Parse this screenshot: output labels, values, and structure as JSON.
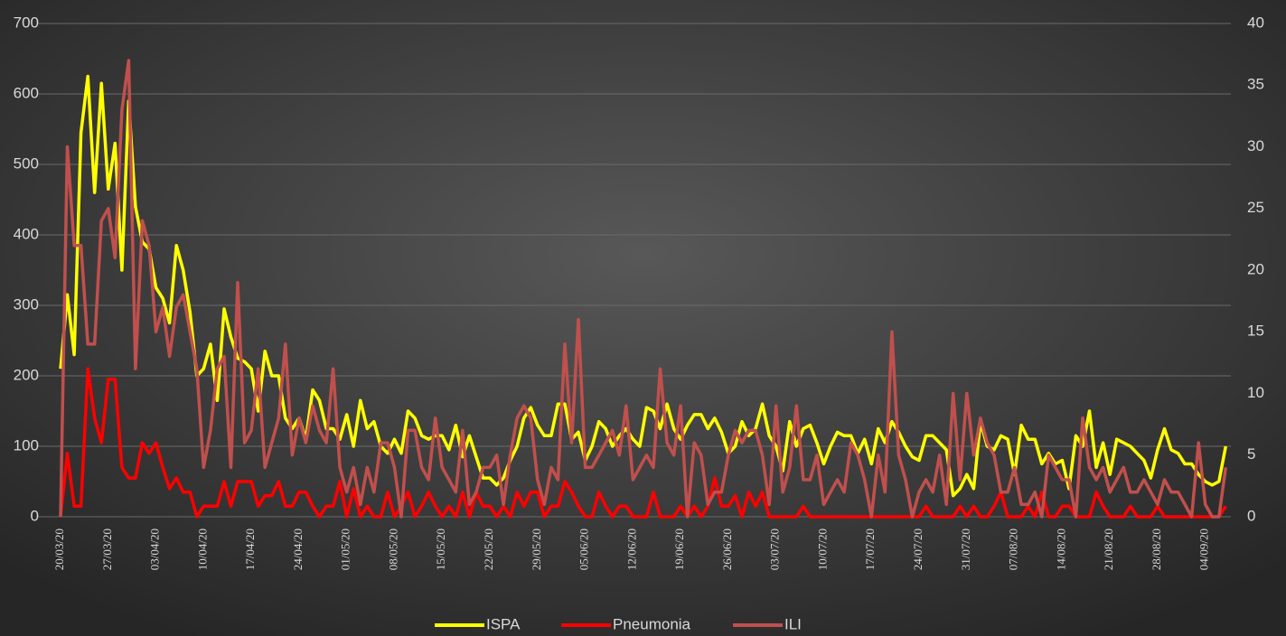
{
  "chart_data": {
    "type": "line",
    "categories": [
      "20/03/20",
      null,
      null,
      null,
      null,
      null,
      null,
      "27/03/20",
      null,
      null,
      null,
      null,
      null,
      null,
      "03/04/20",
      null,
      null,
      null,
      null,
      null,
      null,
      "10/04/20",
      null,
      null,
      null,
      null,
      null,
      null,
      "17/04/20",
      null,
      null,
      null,
      null,
      null,
      null,
      "24/04/20",
      null,
      null,
      null,
      null,
      null,
      null,
      "01/05/20",
      null,
      null,
      null,
      null,
      null,
      null,
      "08/05/20",
      null,
      null,
      null,
      null,
      null,
      null,
      "15/05/20",
      null,
      null,
      null,
      null,
      null,
      null,
      "22/05/20",
      null,
      null,
      null,
      null,
      null,
      null,
      "29/05/20",
      null,
      null,
      null,
      null,
      null,
      null,
      "05/06/20",
      null,
      null,
      null,
      null,
      null,
      null,
      "12/06/20",
      null,
      null,
      null,
      null,
      null,
      null,
      "19/06/20",
      null,
      null,
      null,
      null,
      null,
      null,
      "26/06/20",
      null,
      null,
      null,
      null,
      null,
      null,
      "03/07/20",
      null,
      null,
      null,
      null,
      null,
      null,
      "10/07/20",
      null,
      null,
      null,
      null,
      null,
      null,
      "17/07/20",
      null,
      null,
      null,
      null,
      null,
      null,
      "24/07/20",
      null,
      null,
      null,
      null,
      null,
      null,
      "31/07/20",
      null,
      null,
      null,
      null,
      null,
      null,
      "07/08/20",
      null,
      null,
      null,
      null,
      null,
      null,
      "14/08/20",
      null,
      null,
      null,
      null,
      null,
      null,
      "21/08/20",
      null,
      null,
      null,
      null,
      null,
      null,
      "28/08/20",
      null,
      null,
      null,
      null,
      null,
      null,
      "04/09/20",
      null,
      null,
      null
    ],
    "series": [
      {
        "name": "ISPA",
        "color": "#ffff00",
        "values": [
          210,
          315,
          230,
          545,
          625,
          460,
          615,
          465,
          530,
          350,
          590,
          440,
          390,
          380,
          325,
          310,
          275,
          385,
          350,
          290,
          200,
          210,
          245,
          165,
          295,
          255,
          225,
          220,
          210,
          150,
          235,
          200,
          200,
          140,
          125,
          140,
          110,
          180,
          165,
          125,
          125,
          110,
          145,
          100,
          165,
          125,
          135,
          100,
          90,
          110,
          90,
          150,
          140,
          115,
          110,
          115,
          115,
          95,
          130,
          85,
          115,
          85,
          55,
          55,
          45,
          55,
          80,
          100,
          140,
          155,
          130,
          115,
          115,
          160,
          160,
          110,
          120,
          80,
          100,
          135,
          125,
          100,
          115,
          125,
          110,
          100,
          155,
          150,
          125,
          160,
          125,
          110,
          130,
          145,
          145,
          125,
          140,
          120,
          90,
          100,
          135,
          115,
          125,
          160,
          115,
          100,
          65,
          135,
          100,
          125,
          130,
          105,
          75,
          100,
          120,
          115,
          115,
          90,
          110,
          75,
          125,
          105,
          135,
          120,
          100,
          85,
          80,
          115,
          115,
          105,
          95,
          30,
          40,
          60,
          40,
          135,
          100,
          95,
          115,
          110,
          60,
          130,
          110,
          110,
          75,
          90,
          75,
          80,
          40,
          115,
          100,
          150,
          70,
          105,
          60,
          110,
          105,
          100,
          90,
          80,
          55,
          95,
          125,
          95,
          90,
          75,
          75,
          60,
          50,
          45,
          50,
          100
        ]
      },
      {
        "name": "Pneumonia",
        "color": "#ff0000",
        "values": [
          0,
          90,
          15,
          15,
          210,
          140,
          105,
          195,
          195,
          70,
          55,
          55,
          105,
          90,
          105,
          70,
          40,
          55,
          35,
          35,
          0,
          15,
          15,
          15,
          50,
          15,
          50,
          50,
          50,
          15,
          30,
          30,
          50,
          15,
          15,
          35,
          35,
          15,
          0,
          15,
          15,
          50,
          0,
          40,
          0,
          15,
          0,
          0,
          35,
          0,
          15,
          35,
          0,
          15,
          35,
          15,
          0,
          15,
          0,
          35,
          0,
          35,
          15,
          15,
          0,
          15,
          0,
          35,
          15,
          35,
          35,
          0,
          15,
          15,
          50,
          35,
          15,
          0,
          0,
          35,
          15,
          0,
          15,
          15,
          0,
          0,
          0,
          35,
          0,
          0,
          0,
          15,
          0,
          15,
          0,
          15,
          55,
          15,
          15,
          30,
          0,
          35,
          15,
          35,
          0,
          0,
          0,
          0,
          0,
          15,
          0,
          0,
          0,
          0,
          0,
          0,
          0,
          0,
          0,
          0,
          0,
          0,
          0,
          0,
          0,
          0,
          0,
          15,
          0,
          0,
          0,
          0,
          15,
          0,
          15,
          0,
          0,
          15,
          35,
          0,
          0,
          0,
          15,
          0,
          35,
          0,
          0,
          15,
          15,
          0,
          0,
          0,
          35,
          15,
          0,
          0,
          0,
          15,
          0,
          0,
          0,
          15,
          0,
          0,
          0,
          0,
          0,
          0,
          0,
          0,
          0,
          15
        ]
      },
      {
        "name": "ILI",
        "color": "#c0504d",
        "axis": "y2",
        "values": [
          0,
          30,
          22,
          22,
          14,
          14,
          24,
          25,
          21,
          33,
          37,
          12,
          24,
          22,
          15,
          17,
          13,
          17,
          18,
          15,
          12,
          4,
          7,
          12,
          13,
          4,
          19,
          6,
          7,
          12,
          4,
          6,
          8,
          14,
          5,
          8,
          6,
          9,
          7,
          6,
          12,
          4,
          2,
          4,
          1,
          4,
          2,
          6,
          6,
          4,
          0,
          7,
          7,
          4,
          3,
          8,
          4,
          3,
          2,
          7,
          1,
          2,
          4,
          4,
          5,
          1,
          5,
          8,
          9,
          8,
          3,
          1,
          4,
          3,
          14,
          6,
          16,
          4,
          4,
          5,
          6,
          7,
          5,
          9,
          3,
          4,
          5,
          4,
          12,
          6,
          5,
          9,
          0,
          6,
          5,
          1,
          2,
          2,
          5,
          7,
          6,
          7,
          7,
          5,
          1,
          9,
          2,
          4,
          9,
          3,
          3,
          5,
          1,
          2,
          3,
          2,
          6,
          5,
          3,
          0,
          5,
          2,
          15,
          5,
          3,
          0,
          2,
          3,
          2,
          5,
          1,
          10,
          3,
          10,
          5,
          8,
          6,
          5,
          2,
          2,
          4,
          1,
          1,
          2,
          0,
          5,
          4,
          3,
          3,
          0,
          8,
          4,
          3,
          4,
          2,
          3,
          4,
          2,
          2,
          3,
          2,
          1,
          3,
          2,
          2,
          1,
          0,
          6,
          1,
          0,
          0,
          4
        ]
      }
    ],
    "ylim": [
      0,
      700
    ],
    "yticks": [
      0,
      100,
      200,
      300,
      400,
      500,
      600,
      700
    ],
    "y2lim": [
      0,
      40
    ],
    "y2ticks": [
      0,
      5,
      10,
      15,
      20,
      25,
      30,
      35,
      40
    ],
    "grid": true,
    "legend": "bottom"
  }
}
